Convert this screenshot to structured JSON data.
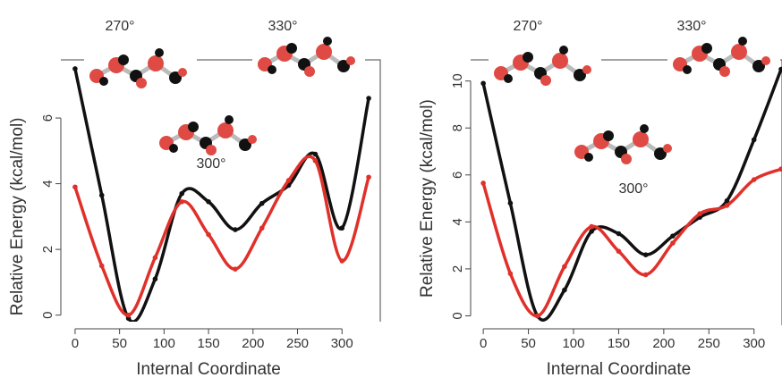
{
  "chart_data": [
    {
      "type": "line",
      "xlabel": "Internal Coordinate",
      "ylabel": "Relative Energy (kcal/mol)",
      "x": [
        0,
        30,
        60,
        90,
        120,
        150,
        180,
        210,
        240,
        270,
        300,
        330
      ],
      "series": [
        {
          "color": "#111111",
          "values": [
            7.5,
            3.65,
            -0.1,
            1.1,
            3.7,
            3.45,
            2.6,
            3.4,
            3.95,
            4.9,
            2.65,
            6.6
          ]
        },
        {
          "color": "#e0302a",
          "values": [
            3.9,
            1.5,
            0.0,
            1.75,
            3.45,
            2.45,
            1.4,
            2.65,
            4.1,
            4.7,
            1.65,
            4.2
          ]
        }
      ],
      "xlim": [
        -16,
        343
      ],
      "ylim": [
        -0.2,
        7.77
      ],
      "xticks": [
        0,
        50,
        100,
        150,
        200,
        250,
        300
      ],
      "yticks": [
        0,
        2,
        4,
        6
      ],
      "annotations": [
        "270°",
        "330°",
        "300°"
      ]
    },
    {
      "type": "line",
      "xlabel": "Internal Coordinate",
      "ylabel": "Relative Energy (kcal/mol)",
      "x": [
        0,
        30,
        60,
        90,
        120,
        150,
        180,
        210,
        240,
        270,
        300,
        330
      ],
      "series": [
        {
          "color": "#111111",
          "values": [
            9.9,
            4.8,
            0.0,
            1.1,
            3.6,
            3.5,
            2.6,
            3.4,
            4.2,
            4.9,
            7.5,
            10.5
          ]
        },
        {
          "color": "#e0302a",
          "values": [
            5.65,
            1.8,
            0.0,
            2.1,
            3.8,
            2.75,
            1.75,
            3.1,
            4.35,
            4.7,
            5.8,
            6.25
          ]
        }
      ],
      "xlim": [
        -14,
        331
      ],
      "ylim": [
        -0.4,
        10.9
      ],
      "xticks": [
        0,
        50,
        100,
        150,
        200,
        250,
        300
      ],
      "yticks": [
        0,
        2,
        4,
        6,
        8,
        10
      ],
      "annotations": [
        "270°",
        "330°",
        "300°"
      ]
    }
  ]
}
